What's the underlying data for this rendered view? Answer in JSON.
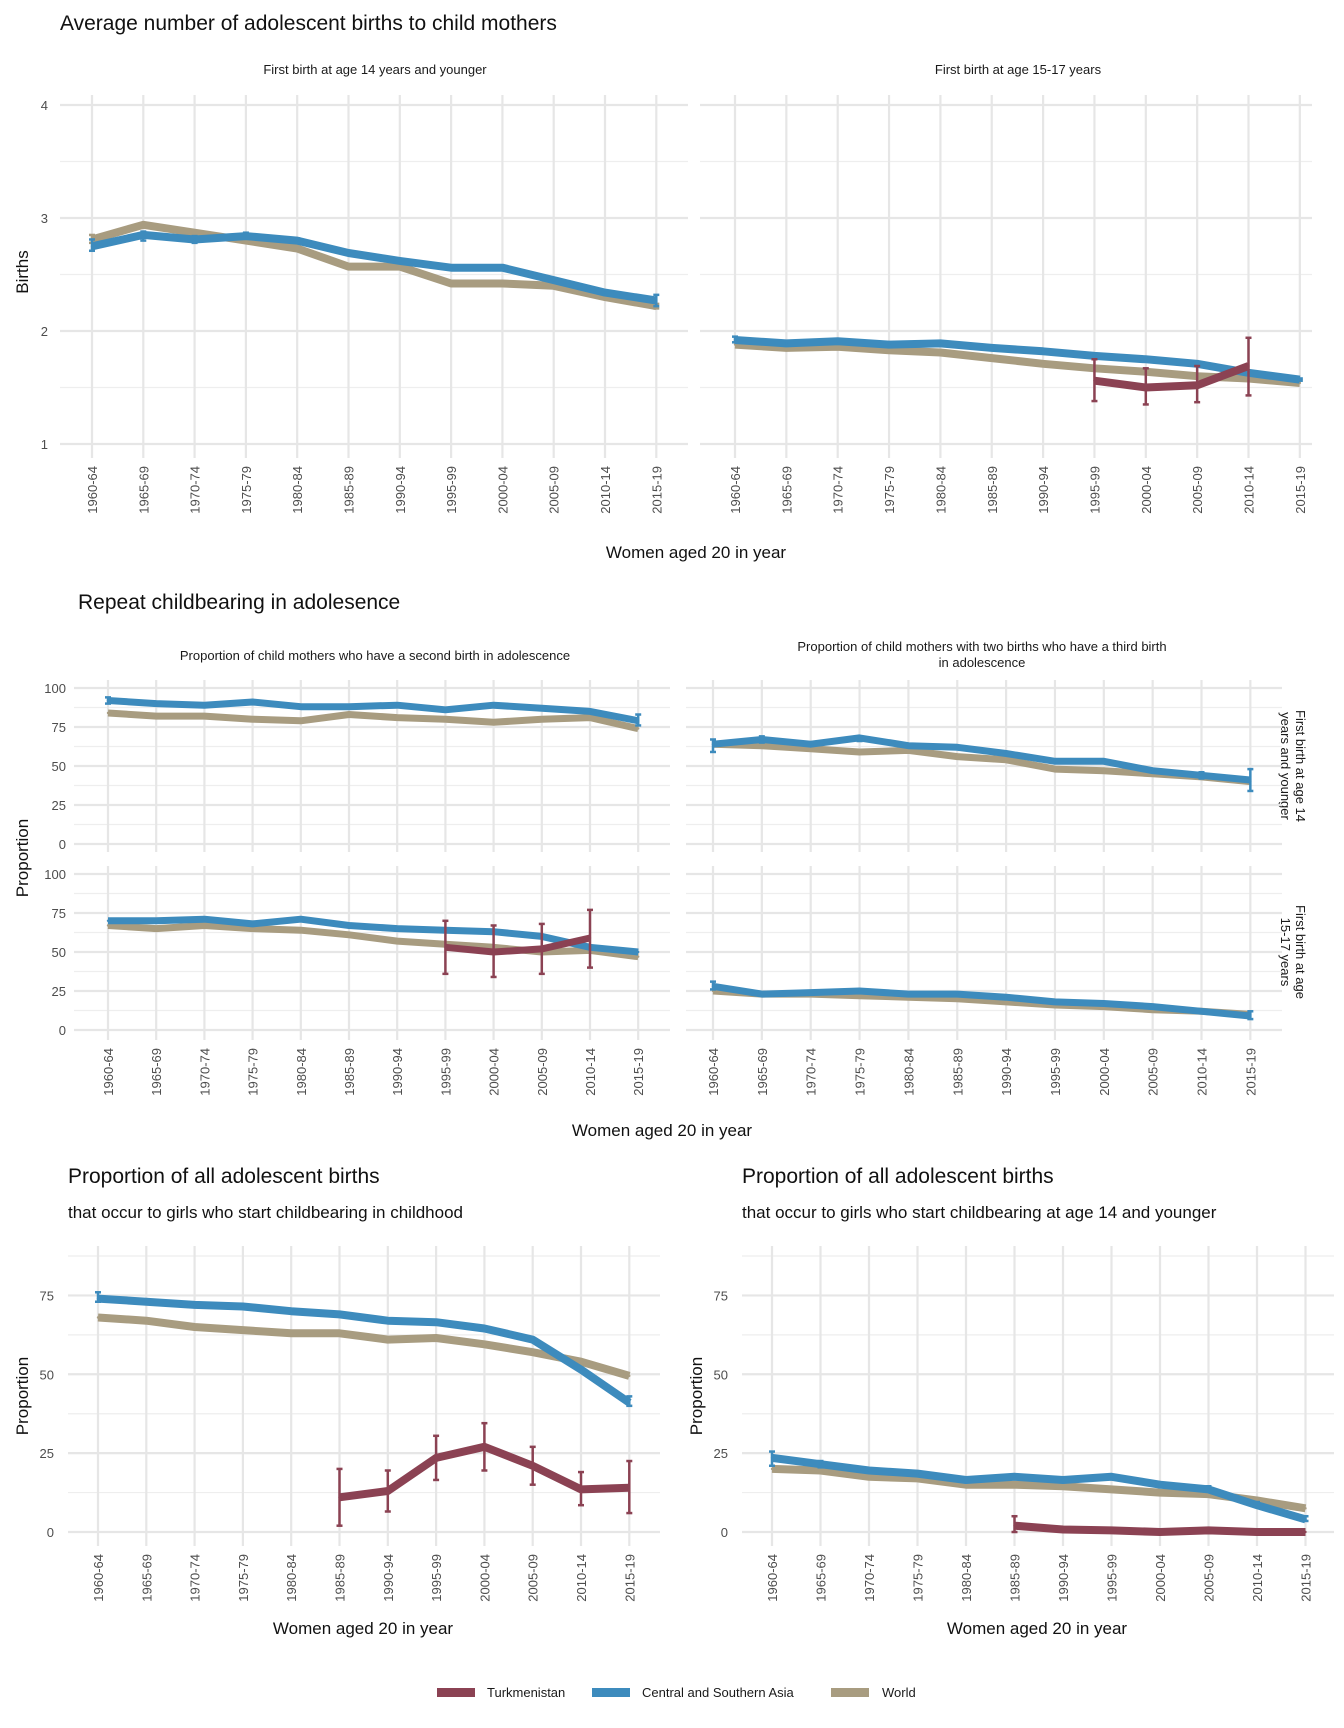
{
  "colors": {
    "Turkmenistan": "#8b4253",
    "Central and Southern Asia": "#3d8bbd",
    "World": "#a89c80"
  },
  "legend": {
    "items": [
      {
        "label": "Turkmenistan",
        "color": "#8b4253"
      },
      {
        "label": "Central and Southern Asia",
        "color": "#3d8bbd"
      },
      {
        "label": "World",
        "color": "#a89c80"
      }
    ]
  },
  "chart_data": [
    {
      "id": "avg-births",
      "type": "line",
      "title": "Average number of adolescent births to child mothers",
      "xlabel": "Women aged 20 in year",
      "ylabel": "Births",
      "ylim": [
        1,
        4
      ],
      "yticks": [
        1,
        2,
        3,
        4
      ],
      "grid": true,
      "categories": [
        "1960-64",
        "1965-69",
        "1970-74",
        "1975-79",
        "1980-84",
        "1985-89",
        "1990-94",
        "1995-99",
        "2000-04",
        "2005-09",
        "2010-14",
        "2015-19"
      ],
      "panels": [
        {
          "strip": "First birth at age 14 years and younger",
          "series": [
            {
              "name": "Central and Southern Asia",
              "values": [
                2.75,
                2.85,
                2.81,
                2.84,
                2.8,
                2.69,
                2.62,
                2.56,
                2.56,
                2.45,
                2.34,
                2.27
              ],
              "lower": [
                2.71,
                2.8,
                2.78,
                2.83,
                2.79,
                null,
                null,
                null,
                null,
                null,
                2.33,
                2.22
              ],
              "upper": [
                2.81,
                2.88,
                2.84,
                2.87,
                2.82,
                null,
                null,
                null,
                null,
                null,
                2.36,
                2.32
              ]
            },
            {
              "name": "World",
              "values": [
                2.81,
                2.94,
                2.87,
                2.8,
                2.73,
                2.57,
                2.57,
                2.42,
                2.42,
                2.4,
                2.3,
                2.22
              ],
              "lower": [
                2.78,
                null,
                null,
                null,
                null,
                null,
                null,
                null,
                null,
                null,
                null,
                2.2
              ],
              "upper": [
                2.85,
                null,
                null,
                null,
                null,
                null,
                null,
                null,
                null,
                null,
                null,
                2.24
              ]
            },
            {
              "name": "Turkmenistan",
              "values": [
                null,
                null,
                null,
                null,
                null,
                null,
                null,
                null,
                null,
                null,
                null,
                null
              ]
            }
          ]
        },
        {
          "strip": "First birth at age 15-17 years",
          "series": [
            {
              "name": "Central and Southern Asia",
              "values": [
                1.92,
                1.89,
                1.91,
                1.88,
                1.89,
                1.85,
                1.82,
                1.78,
                1.75,
                1.71,
                1.63,
                1.57
              ],
              "lower": [
                1.9,
                null,
                null,
                null,
                null,
                null,
                null,
                null,
                null,
                null,
                null,
                1.56
              ],
              "upper": [
                1.95,
                null,
                null,
                null,
                null,
                null,
                null,
                null,
                null,
                null,
                null,
                1.58
              ]
            },
            {
              "name": "World",
              "values": [
                1.88,
                1.85,
                1.86,
                1.83,
                1.81,
                1.76,
                1.71,
                1.67,
                1.64,
                1.6,
                1.58,
                1.54
              ]
            },
            {
              "name": "Turkmenistan",
              "values": [
                null,
                null,
                null,
                null,
                null,
                null,
                null,
                1.56,
                1.5,
                1.52,
                1.69,
                null
              ],
              "lower": [
                null,
                null,
                null,
                null,
                null,
                null,
                null,
                1.38,
                1.35,
                1.37,
                1.43,
                null
              ],
              "upper": [
                null,
                null,
                null,
                null,
                null,
                null,
                null,
                1.75,
                1.67,
                1.69,
                1.94,
                null
              ]
            }
          ]
        }
      ]
    },
    {
      "id": "repeat-childbearing",
      "type": "line",
      "title": "Repeat childbearing in adolesence",
      "xlabel": "Women aged 20 in year",
      "ylabel": "Proportion",
      "ylim": [
        0,
        100
      ],
      "yticks": [
        0,
        25,
        50,
        75,
        100
      ],
      "grid": true,
      "categories": [
        "1960-64",
        "1965-69",
        "1970-74",
        "1975-79",
        "1980-84",
        "1985-89",
        "1990-94",
        "1995-99",
        "2000-04",
        "2005-09",
        "2010-14",
        "2015-19"
      ],
      "col_strips": [
        "Proportion of child mothers who have a second birth in adolescence",
        "Proportion of child mothers with two births who have a third birth in adolescence"
      ],
      "row_strips": [
        "First birth at age 14 years and younger",
        "First birth at age 15-17 years"
      ],
      "panels": [
        {
          "row": 0,
          "col": 0,
          "series": [
            {
              "name": "Central and Southern Asia",
              "values": [
                92,
                90,
                89,
                91,
                88,
                88,
                89,
                86,
                89,
                87,
                85,
                79
              ],
              "lower": [
                90,
                null,
                null,
                null,
                null,
                null,
                null,
                null,
                null,
                null,
                84,
                76
              ],
              "upper": [
                94,
                null,
                null,
                null,
                null,
                null,
                null,
                null,
                null,
                null,
                86,
                83
              ]
            },
            {
              "name": "World",
              "values": [
                84,
                82,
                82,
                80,
                79,
                83,
                81,
                80,
                78,
                80,
                81,
                74
              ]
            },
            {
              "name": "Turkmenistan",
              "values": [
                null,
                null,
                null,
                null,
                null,
                null,
                null,
                null,
                null,
                null,
                null,
                null
              ]
            }
          ]
        },
        {
          "row": 0,
          "col": 1,
          "series": [
            {
              "name": "Central and Southern Asia",
              "values": [
                64,
                67,
                64,
                68,
                63,
                62,
                58,
                53,
                53,
                47,
                44,
                41
              ],
              "lower": [
                59,
                65,
                null,
                66,
                null,
                null,
                null,
                null,
                null,
                null,
                42,
                34
              ],
              "upper": [
                67,
                69,
                null,
                69,
                null,
                null,
                null,
                null,
                null,
                null,
                46,
                48
              ]
            },
            {
              "name": "World",
              "values": [
                64,
                63,
                61,
                59,
                60,
                56,
                54,
                48,
                47,
                45,
                43,
                40
              ]
            },
            {
              "name": "Turkmenistan",
              "values": [
                null,
                null,
                null,
                null,
                null,
                null,
                null,
                null,
                null,
                null,
                null,
                null
              ]
            }
          ]
        },
        {
          "row": 1,
          "col": 0,
          "series": [
            {
              "name": "Central and Southern Asia",
              "values": [
                70,
                70,
                71,
                68,
                71,
                67,
                65,
                64,
                63,
                60,
                53,
                50
              ]
            },
            {
              "name": "World",
              "values": [
                67,
                65,
                67,
                65,
                64,
                61,
                57,
                55,
                53,
                50,
                51,
                47
              ]
            },
            {
              "name": "Turkmenistan",
              "values": [
                null,
                null,
                null,
                null,
                null,
                null,
                null,
                53,
                50,
                52,
                59,
                null
              ],
              "lower": [
                null,
                null,
                null,
                null,
                null,
                null,
                null,
                36,
                34,
                36,
                40,
                null
              ],
              "upper": [
                null,
                null,
                null,
                null,
                null,
                null,
                null,
                70,
                67,
                68,
                77,
                null
              ]
            }
          ]
        },
        {
          "row": 1,
          "col": 1,
          "series": [
            {
              "name": "Central and Southern Asia",
              "values": [
                28,
                23,
                24,
                25,
                23,
                23,
                21,
                18,
                17,
                15,
                12,
                9
              ],
              "lower": [
                26,
                null,
                null,
                null,
                null,
                null,
                null,
                null,
                null,
                null,
                null,
                7
              ],
              "upper": [
                31,
                null,
                null,
                null,
                null,
                null,
                null,
                null,
                null,
                null,
                null,
                12
              ]
            },
            {
              "name": "World",
              "values": [
                25,
                23,
                23,
                22,
                21,
                20,
                18,
                16,
                15,
                13,
                12,
                10
              ]
            },
            {
              "name": "Turkmenistan",
              "values": [
                null,
                null,
                null,
                null,
                null,
                null,
                null,
                null,
                null,
                null,
                null,
                null
              ]
            }
          ]
        }
      ]
    },
    {
      "id": "prop-childhood",
      "type": "line",
      "title": "Proportion of all adolescent births",
      "subtitle": "that occur to girls who start childbearing in childhood",
      "xlabel": "Women aged 20 in year",
      "ylabel": "Proportion",
      "ylim": [
        0,
        87.5
      ],
      "yticks": [
        0,
        25,
        50,
        75
      ],
      "grid": true,
      "categories": [
        "1960-64",
        "1965-69",
        "1970-74",
        "1975-79",
        "1980-84",
        "1985-89",
        "1990-94",
        "1995-99",
        "2000-04",
        "2005-09",
        "2010-14",
        "2015-19"
      ],
      "series": [
        {
          "name": "Central and Southern Asia",
          "values": [
            74,
            73,
            72,
            71.5,
            70,
            69,
            67,
            66.5,
            64.5,
            61,
            51.5,
            41
          ],
          "lower": [
            73,
            null,
            null,
            null,
            null,
            null,
            null,
            null,
            null,
            null,
            null,
            40
          ],
          "upper": [
            76,
            null,
            null,
            null,
            null,
            null,
            null,
            null,
            null,
            null,
            null,
            43
          ]
        },
        {
          "name": "World",
          "values": [
            68,
            67,
            65,
            64,
            63,
            63,
            61,
            61.5,
            59.5,
            57,
            54,
            49.5
          ]
        },
        {
          "name": "Turkmenistan",
          "values": [
            null,
            null,
            null,
            null,
            null,
            11,
            13,
            23.5,
            27,
            21,
            13.5,
            14
          ],
          "lower": [
            null,
            null,
            null,
            null,
            null,
            2,
            6.5,
            16.5,
            19.5,
            15,
            8.5,
            6
          ],
          "upper": [
            null,
            null,
            null,
            null,
            null,
            20,
            19.5,
            30.5,
            34.5,
            27,
            19,
            22.5
          ]
        }
      ]
    },
    {
      "id": "prop-age14",
      "type": "line",
      "title": "Proportion of all adolescent births",
      "subtitle": "that occur to girls who start childbearing at age 14 and younger",
      "xlabel": "Women aged 20 in year",
      "ylabel": "Proportion",
      "ylim": [
        0,
        87.5
      ],
      "yticks": [
        0,
        25,
        50,
        75
      ],
      "grid": true,
      "categories": [
        "1960-64",
        "1965-69",
        "1970-74",
        "1975-79",
        "1980-84",
        "1985-89",
        "1990-94",
        "1995-99",
        "2000-04",
        "2005-09",
        "2010-14",
        "2015-19"
      ],
      "series": [
        {
          "name": "Central and Southern Asia",
          "values": [
            23.5,
            21.5,
            19.5,
            18.5,
            16.5,
            17.5,
            16.5,
            17.5,
            15,
            13.5,
            8.5,
            4
          ],
          "lower": [
            21,
            20.5,
            null,
            null,
            null,
            null,
            null,
            null,
            null,
            13,
            8,
            3.5
          ],
          "upper": [
            25.5,
            22.5,
            null,
            null,
            null,
            null,
            null,
            null,
            null,
            14.5,
            9.5,
            5
          ]
        },
        {
          "name": "World",
          "values": [
            20,
            19.5,
            17.5,
            17,
            15,
            15,
            14.5,
            13.5,
            12.5,
            12,
            10,
            7.5
          ]
        },
        {
          "name": "Turkmenistan",
          "values": [
            null,
            null,
            null,
            null,
            null,
            2,
            0.8,
            0.5,
            0,
            0.5,
            0,
            0
          ],
          "lower": [
            null,
            null,
            null,
            null,
            null,
            0,
            0.3,
            null,
            null,
            null,
            null,
            null
          ],
          "upper": [
            null,
            null,
            null,
            null,
            null,
            5,
            1.5,
            null,
            null,
            null,
            null,
            null
          ]
        }
      ]
    }
  ]
}
